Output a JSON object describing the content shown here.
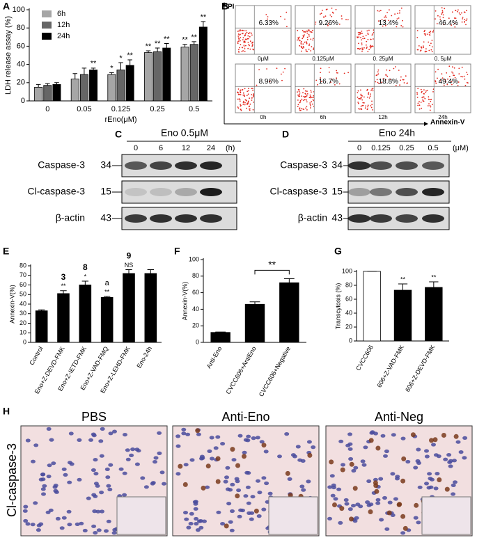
{
  "chart_data": [
    {
      "type": "bar",
      "panel_label": "A",
      "xlabel": "rEno(μM)",
      "ylabel": "LDH release assay (%)",
      "categories": [
        "0",
        "0.05",
        "0.125",
        "0.25",
        "0.5"
      ],
      "series": [
        {
          "name": "6h",
          "color": "#a6a6a6",
          "values": [
            15,
            24,
            29,
            53,
            59
          ],
          "errors": [
            3,
            6,
            2,
            2,
            3
          ],
          "annotations": [
            null,
            null,
            "*",
            "**",
            "**"
          ]
        },
        {
          "name": "12h",
          "color": "#666666",
          "values": [
            17,
            29,
            34,
            54,
            62
          ],
          "errors": [
            2,
            7,
            8,
            4,
            3
          ],
          "annotations": [
            null,
            null,
            "*",
            "**",
            "**"
          ]
        },
        {
          "name": "24h",
          "color": "#000000",
          "values": [
            18,
            34,
            39,
            58,
            81
          ],
          "errors": [
            2,
            2,
            6,
            5,
            6
          ],
          "annotations": [
            null,
            "**",
            "**",
            "**",
            "**"
          ]
        }
      ],
      "ylim": [
        0,
        100
      ],
      "yticks": [
        0,
        20,
        40,
        60,
        80,
        100
      ]
    },
    {
      "type": "bar",
      "panel_label": "E",
      "ylabel": "Annexin-V(%)",
      "categories": [
        "Control",
        "Eno+Z-DEVD-FMK",
        "Eno+Z-IETD-FMK",
        "Eno+Z-VAD-FMQ",
        "Eno+Z-LEHD-FMK",
        "Eno-24h"
      ],
      "values": [
        33,
        51,
        60,
        47,
        72,
        72
      ],
      "errors": [
        1,
        3,
        4,
        1,
        4,
        4
      ],
      "color": "#000000",
      "annotations": [
        null,
        "**",
        "*",
        "**",
        "NS",
        null
      ],
      "side_labels": [
        null,
        null,
        null,
        "a",
        null,
        null
      ],
      "highlight_labels": [
        null,
        "3",
        "8",
        null,
        "9",
        null
      ],
      "highlight_color": "#e8261d",
      "ylim": [
        0,
        80
      ],
      "yticks": [
        0,
        10,
        20,
        30,
        40,
        50,
        60,
        70,
        80
      ]
    },
    {
      "type": "bar",
      "panel_label": "F",
      "ylabel": "Annexin-V(%)",
      "categories": [
        "Anti-Eno",
        "CVCC606+AntiEno",
        "CVCC606+Negative"
      ],
      "values": [
        12,
        46,
        72
      ],
      "errors": [
        0.5,
        3,
        5
      ],
      "color": "#000000",
      "bracket": {
        "label": "**",
        "between": [
          1,
          2
        ]
      },
      "ylim": [
        0,
        100
      ],
      "yticks": [
        0,
        20,
        40,
        60,
        80,
        100
      ]
    },
    {
      "type": "bar",
      "panel_label": "G",
      "ylabel": "Transcytosis (%)",
      "categories": [
        "CVCC606",
        "606+Z-VAD-FMK",
        "606+Z-DEVD-FMK"
      ],
      "values": [
        100,
        73,
        77
      ],
      "errors": [
        0,
        9,
        8
      ],
      "colors": [
        "#ffffff",
        "#000000",
        "#000000"
      ],
      "annotations": [
        null,
        "**",
        "**"
      ],
      "ylim": [
        0,
        100
      ],
      "yticks": [
        0,
        20,
        40,
        60,
        80,
        100
      ]
    }
  ],
  "flow": {
    "panel_label": "B",
    "y_axis": "PI",
    "x_axis": "Annexin-V",
    "rows": [
      {
        "conditions": [
          "0μM",
          "0.125μM",
          "0. 25μM",
          "0. 5μM"
        ],
        "percentages": [
          "6.33%",
          "9.26%",
          "13.4%",
          "46.4%"
        ]
      },
      {
        "conditions": [
          "0h",
          "6h",
          "12h",
          "24h"
        ],
        "percentages": [
          "8.96%",
          "16.7%",
          "18.8%",
          "49.4%"
        ]
      }
    ]
  },
  "blots": [
    {
      "panel_label": "C",
      "treatment": "Eno 0.5μM",
      "lanes": [
        "0",
        "6",
        "12",
        "24"
      ],
      "unit": "(h)",
      "rows": [
        {
          "protein": "Caspase-3",
          "marker": "34"
        },
        {
          "protein": "Cl-caspase-3",
          "marker": "15"
        },
        {
          "protein": "β-actin",
          "marker": "43"
        }
      ]
    },
    {
      "panel_label": "D",
      "treatment": "Eno 24h",
      "lanes": [
        "0",
        "0.125",
        "0.25",
        "0.5"
      ],
      "unit": "(μM)",
      "rows": [
        {
          "protein": "Caspase-3",
          "marker": "34"
        },
        {
          "protein": "Cl-caspase-3",
          "marker": "15"
        },
        {
          "protein": "β-actin",
          "marker": "43"
        }
      ]
    }
  ],
  "histology": {
    "panel_label": "H",
    "stain": "Cl-caspase-3",
    "groups": [
      "PBS",
      "Anti-Eno",
      "Anti-Neg"
    ]
  }
}
